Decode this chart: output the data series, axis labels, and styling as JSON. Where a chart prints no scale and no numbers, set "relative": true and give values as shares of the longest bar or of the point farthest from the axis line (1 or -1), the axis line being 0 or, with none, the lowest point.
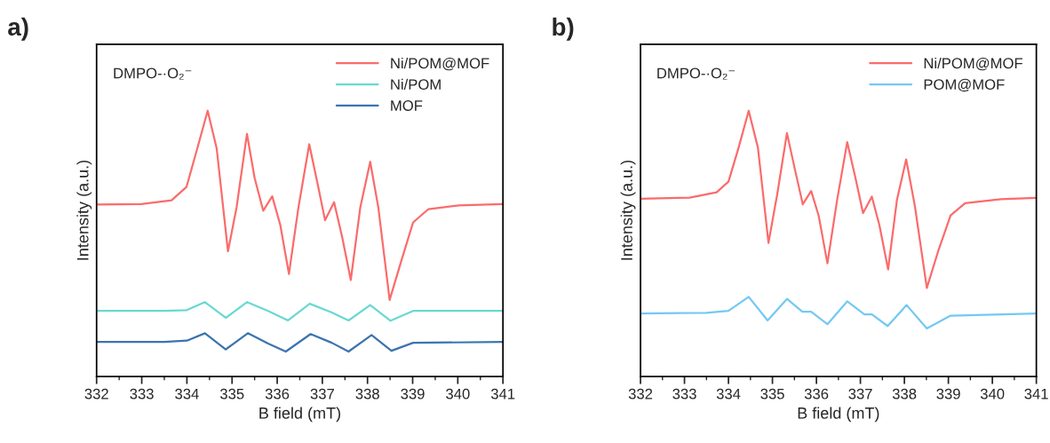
{
  "chart_data": [
    {
      "type": "line",
      "title": "a)",
      "xlabel": "B field (mT)",
      "ylabel": "Intensity (a.u.)",
      "xlim": [
        332,
        341
      ],
      "xticks": [
        332,
        333,
        334,
        335,
        336,
        337,
        338,
        339,
        340,
        341
      ],
      "relative": true,
      "tick_labels": "x",
      "legend": "top right",
      "annotations": [
        "DMPO-·O₂⁻"
      ],
      "series": [
        {
          "name": "Ni/POM@MOF",
          "color": "#fb6b6b",
          "x": [
            332,
            332.99,
            333.66,
            333.99,
            334.23,
            334.46,
            334.66,
            334.91,
            335.1,
            335.33,
            335.5,
            335.69,
            335.89,
            336.07,
            336.26,
            336.47,
            336.71,
            336.91,
            337.06,
            337.26,
            337.44,
            337.63,
            337.84,
            338.06,
            338.24,
            338.49,
            338.75,
            339.01,
            339.35,
            340.02,
            341
          ],
          "values": [
            0.647,
            0.649,
            0.663,
            0.713,
            0.858,
            1.0,
            0.858,
            0.471,
            0.636,
            0.913,
            0.747,
            0.624,
            0.678,
            0.569,
            0.386,
            0.636,
            0.874,
            0.713,
            0.588,
            0.656,
            0.524,
            0.363,
            0.636,
            0.808,
            0.636,
            0.288,
            0.436,
            0.58,
            0.63,
            0.644,
            0.649
          ]
        },
        {
          "name": "Ni/POM",
          "color": "#6ad8d2",
          "x": [
            332,
            333.5,
            334.0,
            334.4,
            334.86,
            335.33,
            335.8,
            336.24,
            336.72,
            337.21,
            337.58,
            338.06,
            338.51,
            339.01,
            341
          ],
          "values": [
            0.247,
            0.247,
            0.25,
            0.28,
            0.221,
            0.28,
            0.247,
            0.211,
            0.274,
            0.241,
            0.211,
            0.269,
            0.21,
            0.247,
            0.247
          ]
        },
        {
          "name": "MOF",
          "color": "#3a74b0",
          "x": [
            332,
            333.5,
            334.0,
            334.4,
            334.86,
            335.35,
            335.8,
            336.19,
            336.74,
            337.21,
            337.58,
            338.09,
            338.53,
            339.01,
            341
          ],
          "values": [
            0.13,
            0.13,
            0.135,
            0.163,
            0.102,
            0.163,
            0.124,
            0.094,
            0.16,
            0.127,
            0.094,
            0.156,
            0.097,
            0.127,
            0.13
          ]
        }
      ]
    },
    {
      "type": "line",
      "title": "b)",
      "xlabel": "B field (mT)",
      "ylabel": "Intensity (a.u.)",
      "xlim": [
        332,
        341
      ],
      "xticks": [
        332,
        333,
        334,
        335,
        336,
        337,
        338,
        339,
        340,
        341
      ],
      "relative": true,
      "tick_labels": "x",
      "legend": "top right",
      "annotations": [
        "DMPO-·O₂⁻"
      ],
      "series": [
        {
          "name": "Ni/POM@MOF",
          "color": "#fb6b6b",
          "x": [
            332,
            333.12,
            333.73,
            334.0,
            334.23,
            334.46,
            334.67,
            334.91,
            335.11,
            335.33,
            335.51,
            335.69,
            335.88,
            336.05,
            336.25,
            336.47,
            336.7,
            336.89,
            337.06,
            337.26,
            337.43,
            337.63,
            337.83,
            338.04,
            338.24,
            338.51,
            338.78,
            339.05,
            339.38,
            340.19,
            341
          ],
          "values": [
            0.669,
            0.673,
            0.693,
            0.733,
            0.861,
            1.0,
            0.861,
            0.503,
            0.687,
            0.916,
            0.78,
            0.648,
            0.698,
            0.606,
            0.426,
            0.664,
            0.882,
            0.745,
            0.615,
            0.677,
            0.571,
            0.403,
            0.664,
            0.817,
            0.64,
            0.333,
            0.478,
            0.606,
            0.652,
            0.667,
            0.672
          ]
        },
        {
          "name": "POM@MOF",
          "color": "#74c8f5",
          "x": [
            332,
            333.5,
            334.0,
            334.46,
            334.89,
            335.33,
            335.68,
            335.88,
            336.25,
            336.7,
            337.09,
            337.26,
            337.62,
            338.05,
            338.51,
            339.05,
            341
          ],
          "values": [
            0.237,
            0.24,
            0.247,
            0.3,
            0.211,
            0.292,
            0.244,
            0.244,
            0.197,
            0.283,
            0.234,
            0.234,
            0.19,
            0.269,
            0.181,
            0.229,
            0.237
          ]
        }
      ]
    }
  ]
}
